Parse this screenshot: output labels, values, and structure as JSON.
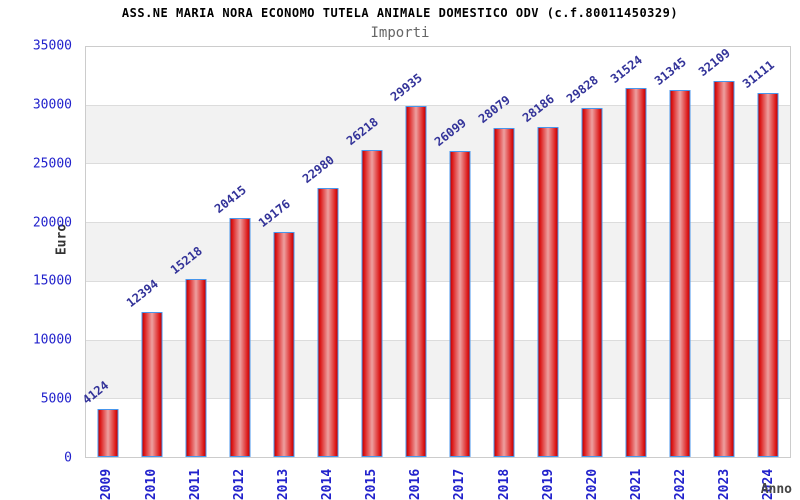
{
  "title": "ASS.NE MARIA NORA ECONOMO TUTELA ANIMALE DOMESTICO ODV (c.f.80011450329)",
  "subtitle": "Importi",
  "chart_data": {
    "type": "bar",
    "title": "ASS.NE MARIA NORA ECONOMO TUTELA ANIMALE DOMESTICO ODV (c.f.80011450329)",
    "subtitle": "Importi",
    "xlabel": "Anno",
    "ylabel": "Euro",
    "categories": [
      "2009",
      "2010",
      "2011",
      "2012",
      "2013",
      "2014",
      "2015",
      "2016",
      "2017",
      "2018",
      "2019",
      "2020",
      "2021",
      "2022",
      "2023",
      "2024"
    ],
    "values": [
      4124,
      12394,
      15218,
      20415,
      19176,
      22980,
      26218,
      29935,
      26099,
      28079,
      28186,
      29828,
      31524,
      31345,
      32109,
      31111
    ],
    "ylim": [
      0,
      35000
    ],
    "yticks": [
      0,
      5000,
      10000,
      15000,
      20000,
      25000,
      30000,
      35000
    ],
    "grid": true,
    "legend": "none",
    "bands_alternating": true
  },
  "colors": {
    "tick_label": "#2222cc",
    "value_label": "#333399",
    "bar_border": "#4796ec",
    "bar_edge_red": "#c40000",
    "bar_center_pink": "#eda0a0",
    "band_gray": "#f2f2f2",
    "band_white": "#ffffff",
    "gridline": "#dcdcdc",
    "title_color": "#000000",
    "subtitle_color": "#666666",
    "axis_title_color": "#444444"
  }
}
